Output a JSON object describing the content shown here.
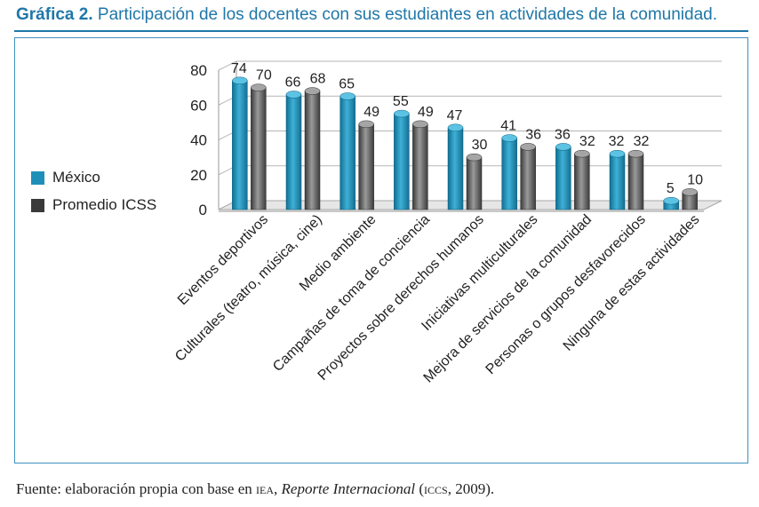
{
  "header": {
    "prefix": "Gráfica 2.",
    "text": "Participación de los docentes con sus estudiantes en actividades de la comunidad."
  },
  "legend": {
    "mexico": "México",
    "icss": "Promedio ICSS"
  },
  "colors": {
    "mexico": "#1e8fb8",
    "icss": "#4d4d4d",
    "accent": "#1f77a8"
  },
  "source": {
    "prefix": "Fuente: elaboración propia con base en",
    "org1": "iea",
    "sep": ",",
    "title": "Reporte Internacional",
    "paren_open": "(",
    "org2": "iccs",
    "year": ", 2009)."
  },
  "chart_data": {
    "type": "bar",
    "title": "Participación de los docentes con sus estudiantes en actividades de la comunidad.",
    "categories": [
      "Eventos deportivos",
      "Culturales (teatro, música, cine)",
      "Medio ambiente",
      "Campañas de toma de conciencia",
      "Proyectos sobre derechos humanos",
      "Iniciativas multiculturales",
      "Mejora de servicios de la comunidad",
      "Personas o grupos desfavorecidos",
      "Ninguna de estas actividades"
    ],
    "series": [
      {
        "name": "México",
        "values": [
          74,
          66,
          65,
          55,
          47,
          41,
          36,
          32,
          5
        ]
      },
      {
        "name": "Promedio ICSS",
        "values": [
          70,
          68,
          49,
          49,
          30,
          36,
          32,
          32,
          10
        ]
      }
    ],
    "yticks": [
      0,
      20,
      40,
      60,
      80
    ],
    "ylim": [
      0,
      80
    ],
    "grid": true,
    "legend_position": "left"
  }
}
